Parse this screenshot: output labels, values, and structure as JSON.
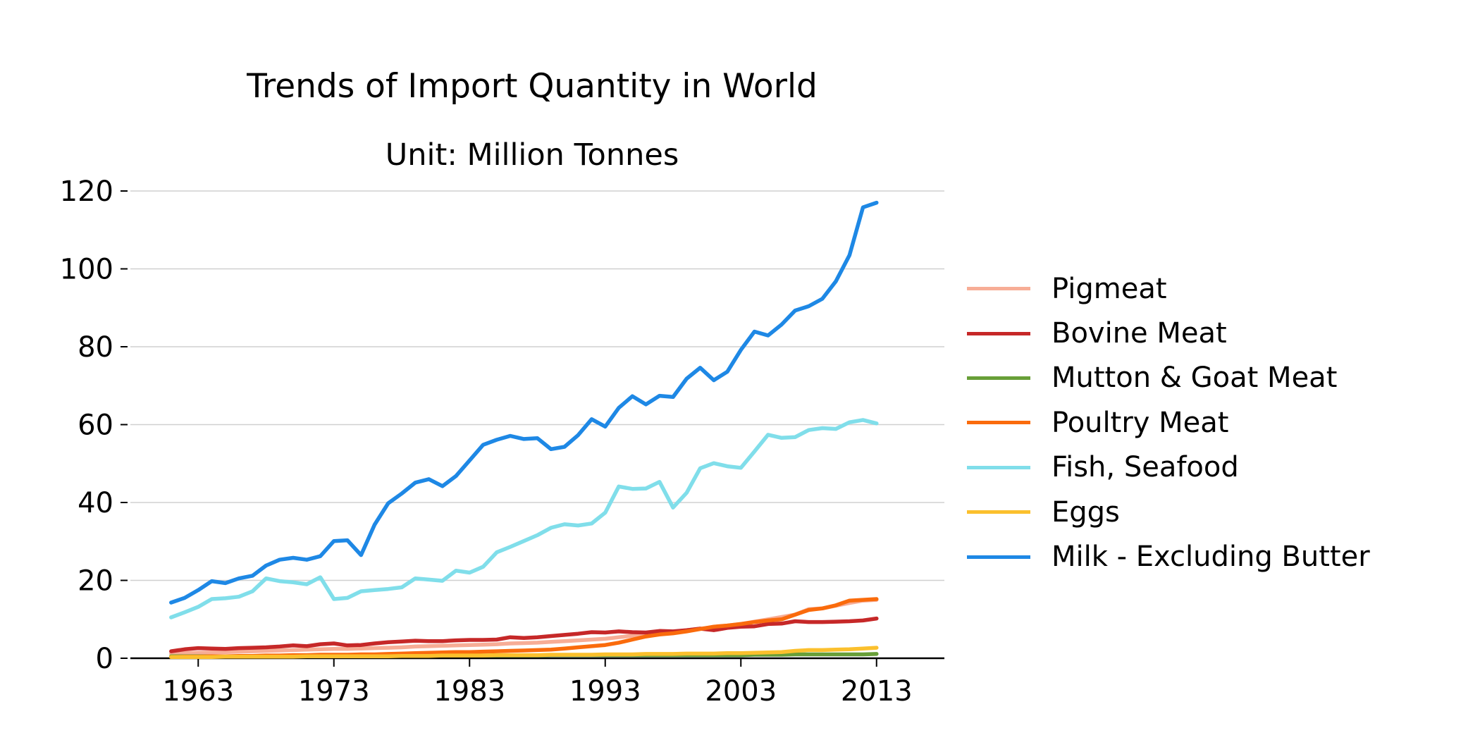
{
  "chart_data": {
    "type": "line",
    "title": "Trends of Import Quantity in World",
    "subtitle": "Unit: Million Tonnes",
    "xlabel": "",
    "ylabel": "",
    "xlim": [
      1958,
      2018
    ],
    "ylim": [
      0,
      120
    ],
    "xticks": [
      1963,
      1973,
      1983,
      1993,
      2003,
      2013
    ],
    "yticks": [
      0,
      20,
      40,
      60,
      80,
      100,
      120
    ],
    "grid": "horizontal",
    "legend_position": "right",
    "x": [
      1961,
      1962,
      1963,
      1964,
      1965,
      1966,
      1967,
      1968,
      1969,
      1970,
      1971,
      1972,
      1973,
      1974,
      1975,
      1976,
      1977,
      1978,
      1979,
      1980,
      1981,
      1982,
      1983,
      1984,
      1985,
      1986,
      1987,
      1988,
      1989,
      1990,
      1991,
      1992,
      1993,
      1994,
      1995,
      1996,
      1997,
      1998,
      1999,
      2000,
      2001,
      2002,
      2003,
      2004,
      2005,
      2006,
      2007,
      2008,
      2009,
      2010,
      2011,
      2012,
      2013
    ],
    "series": [
      {
        "name": "Pigmeat",
        "color": "#f7ad96",
        "values": [
          1.2,
          1.3,
          1.4,
          1.5,
          1.6,
          1.7,
          1.8,
          1.9,
          2.0,
          2.1,
          2.2,
          2.3,
          2.4,
          2.4,
          2.5,
          2.6,
          2.7,
          2.8,
          3.0,
          3.1,
          3.2,
          3.3,
          3.4,
          3.5,
          3.6,
          3.8,
          3.9,
          4.0,
          4.2,
          4.4,
          4.6,
          4.8,
          5.0,
          5.4,
          5.8,
          6.2,
          6.5,
          6.8,
          7.2,
          7.6,
          8.0,
          8.4,
          8.8,
          9.4,
          10.0,
          10.6,
          11.2,
          12.6,
          12.8,
          13.5,
          14.2,
          14.8,
          15.0
        ]
      },
      {
        "name": "Bovine Meat",
        "color": "#c62828",
        "values": [
          1.8,
          2.3,
          2.6,
          2.5,
          2.4,
          2.6,
          2.7,
          2.8,
          3.0,
          3.3,
          3.1,
          3.6,
          3.8,
          3.3,
          3.4,
          3.8,
          4.1,
          4.3,
          4.5,
          4.4,
          4.4,
          4.6,
          4.7,
          4.7,
          4.8,
          5.4,
          5.2,
          5.4,
          5.7,
          6.0,
          6.3,
          6.7,
          6.6,
          6.9,
          6.7,
          6.6,
          7.0,
          6.9,
          7.2,
          7.6,
          7.2,
          7.8,
          8.1,
          8.2,
          8.8,
          8.9,
          9.5,
          9.3,
          9.3,
          9.4,
          9.5,
          9.7,
          10.2
        ]
      },
      {
        "name": "Mutton & Goat Meat",
        "color": "#689f38",
        "values": [
          0.5,
          0.5,
          0.5,
          0.5,
          0.5,
          0.5,
          0.6,
          0.6,
          0.6,
          0.6,
          0.6,
          0.6,
          0.6,
          0.6,
          0.6,
          0.6,
          0.6,
          0.6,
          0.7,
          0.7,
          0.7,
          0.7,
          0.7,
          0.7,
          0.7,
          0.7,
          0.7,
          0.7,
          0.8,
          0.8,
          0.8,
          0.8,
          0.8,
          0.8,
          0.8,
          0.8,
          0.8,
          0.8,
          0.8,
          0.8,
          0.8,
          0.8,
          0.8,
          0.9,
          0.9,
          0.9,
          1.0,
          1.0,
          1.0,
          1.0,
          1.0,
          1.0,
          1.1
        ]
      },
      {
        "name": "Poultry Meat",
        "color": "#fa6b0c",
        "values": [
          0.3,
          0.4,
          0.4,
          0.5,
          0.5,
          0.6,
          0.6,
          0.7,
          0.7,
          0.8,
          0.8,
          0.9,
          0.9,
          0.9,
          1.0,
          1.0,
          1.1,
          1.2,
          1.3,
          1.4,
          1.5,
          1.6,
          1.6,
          1.7,
          1.8,
          1.9,
          2.0,
          2.1,
          2.2,
          2.5,
          2.8,
          3.1,
          3.4,
          4.0,
          4.8,
          5.6,
          6.1,
          6.4,
          6.9,
          7.5,
          8.1,
          8.4,
          8.8,
          9.3,
          9.7,
          10.0,
          11.2,
          12.4,
          12.8,
          13.6,
          14.8,
          15.0,
          15.2
        ]
      },
      {
        "name": "Fish, Seafood",
        "color": "#80deea",
        "values": [
          10.5,
          11.8,
          13.2,
          15.2,
          15.4,
          15.8,
          17.2,
          20.5,
          19.8,
          19.5,
          19.0,
          20.8,
          15.2,
          15.5,
          17.2,
          17.5,
          17.8,
          18.2,
          20.5,
          20.2,
          19.9,
          22.5,
          22.0,
          23.5,
          27.2,
          28.6,
          30.1,
          31.6,
          33.5,
          34.4,
          34.1,
          34.6,
          37.4,
          44.1,
          43.5,
          43.6,
          45.3,
          38.7,
          42.5,
          48.8,
          50.1,
          49.3,
          48.9,
          53.1,
          57.4,
          56.6,
          56.8,
          58.6,
          59.1,
          58.9,
          60.6,
          61.2,
          60.3
        ]
      },
      {
        "name": "Eggs",
        "color": "#fbc02d",
        "values": [
          0.3,
          0.3,
          0.3,
          0.3,
          0.4,
          0.4,
          0.4,
          0.4,
          0.4,
          0.4,
          0.5,
          0.5,
          0.5,
          0.5,
          0.5,
          0.5,
          0.5,
          0.6,
          0.6,
          0.6,
          0.7,
          0.7,
          0.7,
          0.7,
          0.8,
          0.8,
          0.8,
          0.8,
          0.9,
          0.9,
          0.9,
          0.9,
          1.0,
          1.0,
          1.0,
          1.1,
          1.1,
          1.1,
          1.2,
          1.2,
          1.2,
          1.3,
          1.3,
          1.4,
          1.5,
          1.6,
          1.9,
          2.1,
          2.1,
          2.2,
          2.3,
          2.5,
          2.7
        ]
      },
      {
        "name": "Milk - Excluding Butter",
        "color": "#1e88e5",
        "values": [
          14.3,
          15.5,
          17.5,
          19.8,
          19.3,
          20.5,
          21.2,
          23.8,
          25.3,
          25.8,
          25.3,
          26.2,
          30.1,
          30.3,
          26.5,
          34.3,
          39.8,
          42.3,
          45.1,
          46.0,
          44.2,
          46.8,
          50.8,
          54.8,
          56.1,
          57.1,
          56.3,
          56.5,
          53.7,
          54.3,
          57.3,
          61.4,
          59.5,
          64.3,
          67.3,
          65.2,
          67.4,
          67.1,
          71.8,
          74.6,
          71.4,
          73.6,
          79.2,
          83.9,
          82.9,
          85.7,
          89.3,
          90.4,
          92.3,
          96.8,
          103.5,
          115.8,
          117.0
        ]
      }
    ]
  }
}
